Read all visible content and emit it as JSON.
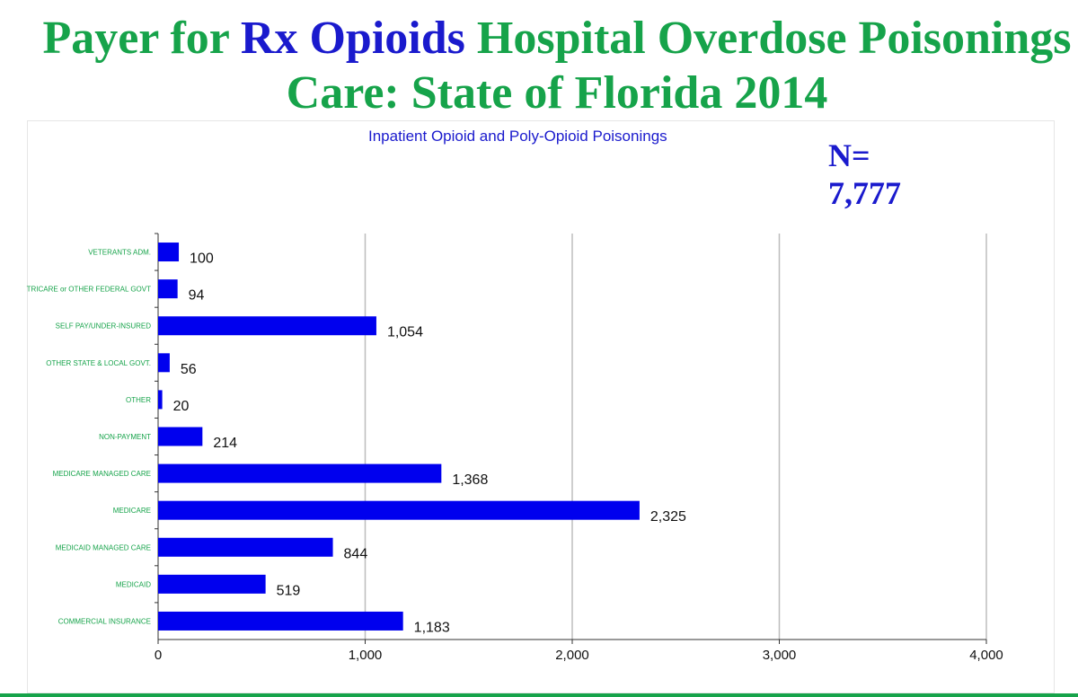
{
  "slide": {
    "title_pre": "Payer for ",
    "title_highlight": "Rx Opioids",
    "title_post": " Hospital Overdose Poisonings Care: State of Florida 2014"
  },
  "annotation": {
    "n_prefix": "N=",
    "n_value": "7,777"
  },
  "colors": {
    "title_green": "#16a34a",
    "bar_blue": "#0000ee",
    "label_green": "#16a34a"
  },
  "chart_data": {
    "type": "bar",
    "orientation": "horizontal",
    "title": "Inpatient Opioid and Poly-Opioid Poisonings",
    "categories": [
      "VETERANTS ADM.",
      "TRICARE or OTHER FEDERAL GOVT",
      "SELF PAY/UNDER-INSURED",
      "OTHER STATE & LOCAL GOVT.",
      "OTHER",
      "NON-PAYMENT",
      "MEDICARE MANAGED CARE",
      "MEDICARE",
      "MEDICAID MANAGED CARE",
      "MEDICAID",
      "COMMERCIAL INSURANCE"
    ],
    "values": [
      100,
      94,
      1054,
      56,
      20,
      214,
      1368,
      2325,
      844,
      519,
      1183
    ],
    "value_labels": [
      "100",
      "94",
      "1,054",
      "56",
      "20",
      "214",
      "1,368",
      "2,325",
      "844",
      "519",
      "1,183"
    ],
    "xlim": [
      0,
      4000
    ],
    "xticks": [
      0,
      1000,
      2000,
      3000,
      4000
    ],
    "xtick_labels": [
      "0",
      "1,000",
      "2,000",
      "3,000",
      "4,000"
    ],
    "gridlines": true,
    "xlabel": "",
    "ylabel": ""
  }
}
